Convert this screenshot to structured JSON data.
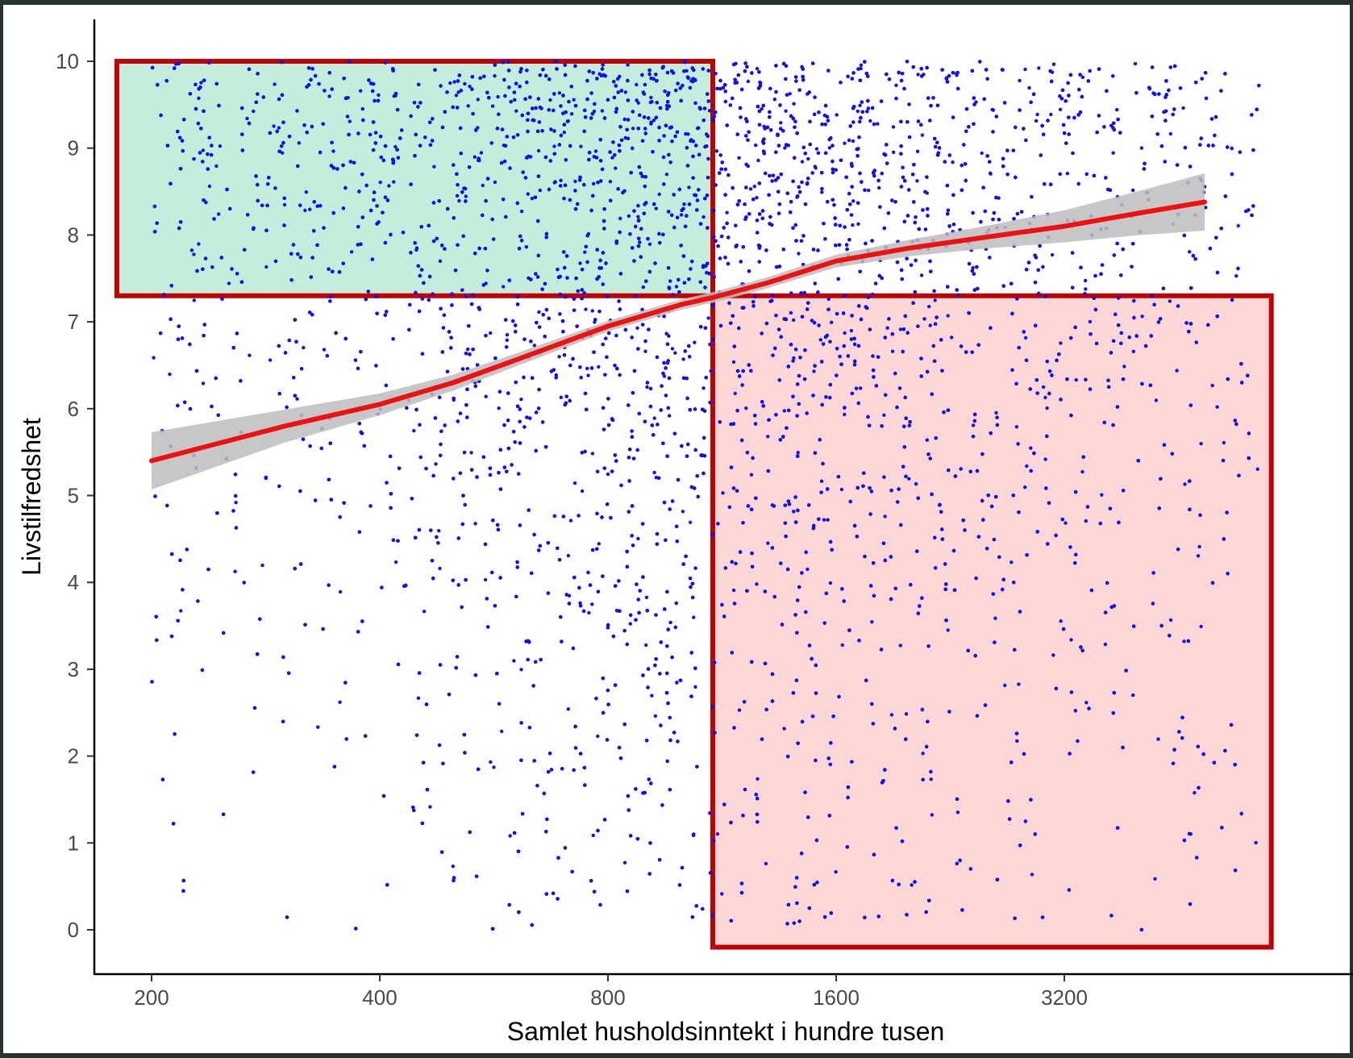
{
  "chart_data": {
    "type": "scatter",
    "title": "",
    "xlabel": "Samlet husholdsinntekt i hundre tusen",
    "ylabel": "Livstilfredshet",
    "x_scale": "log2",
    "xlim": [
      180,
      7000
    ],
    "ylim": [
      -0.5,
      10.5
    ],
    "x_ticks": [
      200,
      400,
      800,
      1600,
      3200
    ],
    "x_tick_labels": [
      "200",
      "400",
      "800",
      "1600",
      "3200"
    ],
    "y_ticks": [
      0,
      1,
      2,
      3,
      4,
      5,
      6,
      7,
      8,
      9,
      10
    ],
    "y_tick_labels": [
      "0",
      "1",
      "2",
      "3",
      "4",
      "5",
      "6",
      "7",
      "8",
      "9",
      "10"
    ],
    "grid": false,
    "point_color": "#1010ee",
    "points_description": "approximately 9000 jittered observations, income about 200-5800, satisfaction 0-10, densest at high satisfaction and mid incomes",
    "fit": {
      "type": "smooth",
      "color": "#ee1111",
      "ribbon_color": "#bdbdbd",
      "x": [
        200,
        300,
        400,
        500,
        600,
        800,
        1000,
        1100,
        1300,
        1600,
        2000,
        2500,
        3200,
        4000,
        4900
      ],
      "y": [
        5.4,
        5.8,
        6.05,
        6.3,
        6.55,
        6.95,
        7.2,
        7.28,
        7.45,
        7.7,
        7.85,
        7.97,
        8.1,
        8.25,
        8.38
      ]
    },
    "annotations": [
      {
        "name": "upper-left-box",
        "fill": "#c6eddb",
        "stroke": "#c00000",
        "x_range": [
          180,
          1100
        ],
        "y_range": [
          7.3,
          10
        ]
      },
      {
        "name": "lower-right-box",
        "fill": "#fdd6d6",
        "stroke": "#c00000",
        "x_range": [
          1100,
          6000
        ],
        "y_range": [
          -0.2,
          7.3
        ]
      }
    ]
  }
}
